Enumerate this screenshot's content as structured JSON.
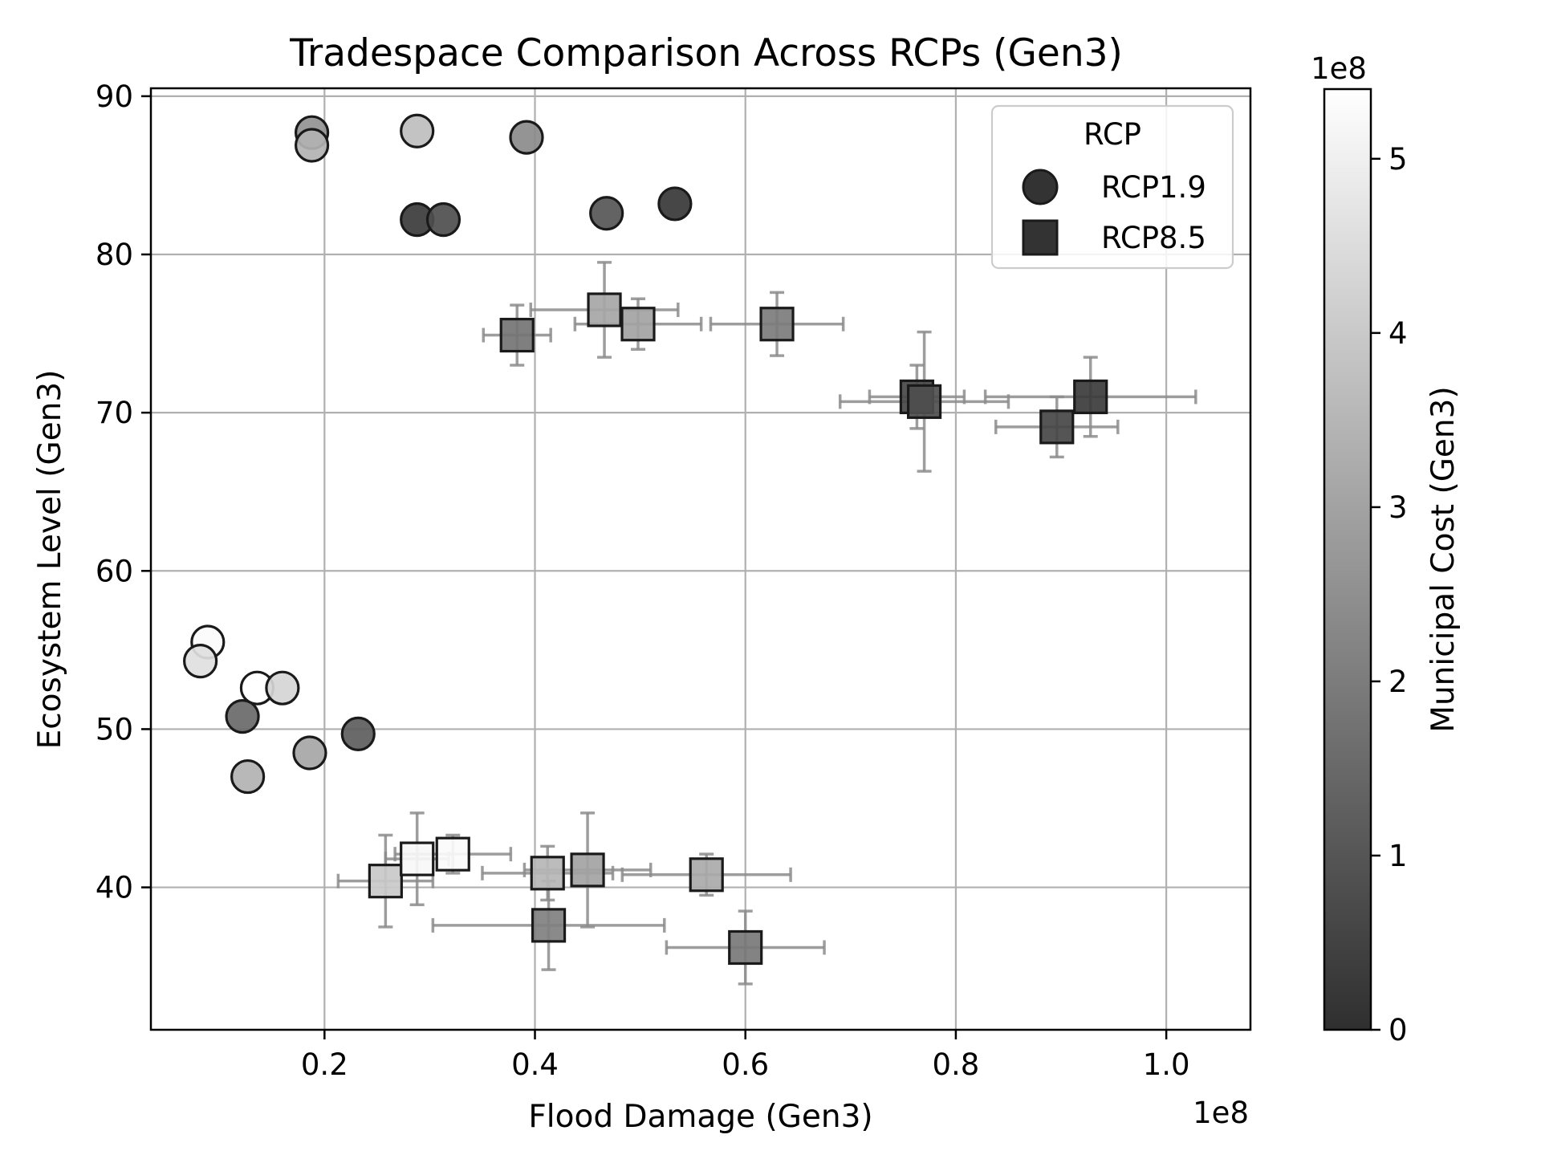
{
  "chart_data": {
    "type": "scatter",
    "title": "Tradespace Comparison Across RCPs (Gen3)",
    "xlabel": "Flood Damage (Gen3)",
    "ylabel": "Ecosystem Level (Gen3)",
    "x_multiplier_label": "1e8",
    "xlim": [
      0.035,
      1.08
    ],
    "ylim": [
      31,
      90.5
    ],
    "x_ticks": [
      0.2,
      0.4,
      0.6,
      0.8,
      1.0
    ],
    "x_tick_labels": [
      "0.2",
      "0.4",
      "0.6",
      "0.8",
      "1.0"
    ],
    "y_ticks": [
      40,
      50,
      60,
      70,
      80,
      90
    ],
    "y_tick_labels": [
      "40",
      "50",
      "60",
      "70",
      "80",
      "90"
    ],
    "grid": true,
    "legend": {
      "title": "RCP",
      "placement": "top-right",
      "entries": [
        {
          "label": "RCP1.9",
          "marker": "circle"
        },
        {
          "label": "RCP8.5",
          "marker": "square"
        }
      ]
    },
    "colorbar": {
      "label": "Municipal Cost (Gen3)",
      "multiplier_label": "1e8",
      "range": [
        0,
        5.4
      ],
      "ticks": [
        0,
        1,
        2,
        3,
        4,
        5
      ],
      "tick_labels": [
        "0",
        "1",
        "2",
        "3",
        "4",
        "5"
      ],
      "colormap": "gray"
    },
    "series": [
      {
        "name": "RCP1.9",
        "marker": "circle",
        "points": [
          {
            "x": 0.188,
            "y": 87.7,
            "cost": 2.6
          },
          {
            "x": 0.188,
            "y": 86.9,
            "cost": 3.4
          },
          {
            "x": 0.288,
            "y": 87.8,
            "cost": 3.7
          },
          {
            "x": 0.392,
            "y": 87.4,
            "cost": 2.4
          },
          {
            "x": 0.288,
            "y": 82.2,
            "cost": 0.3
          },
          {
            "x": 0.313,
            "y": 82.2,
            "cost": 0.8
          },
          {
            "x": 0.468,
            "y": 82.6,
            "cost": 1.0
          },
          {
            "x": 0.533,
            "y": 83.2,
            "cost": 0.2
          },
          {
            "x": 0.089,
            "y": 55.5,
            "cost": 5.3
          },
          {
            "x": 0.082,
            "y": 54.3,
            "cost": 4.6
          },
          {
            "x": 0.136,
            "y": 52.6,
            "cost": 5.4
          },
          {
            "x": 0.16,
            "y": 52.6,
            "cost": 4.3
          },
          {
            "x": 0.122,
            "y": 50.8,
            "cost": 1.5
          },
          {
            "x": 0.232,
            "y": 49.7,
            "cost": 1.2
          },
          {
            "x": 0.186,
            "y": 48.5,
            "cost": 3.1
          },
          {
            "x": 0.127,
            "y": 47.0,
            "cost": 3.4
          }
        ]
      },
      {
        "name": "RCP8.5",
        "marker": "square",
        "points": [
          {
            "x": 0.383,
            "y": 74.9,
            "xerr": 0.032,
            "yerr": 1.9,
            "cost": 1.8
          },
          {
            "x": 0.466,
            "y": 76.5,
            "xerr": 0.07,
            "yerr": 3.0,
            "cost": 3.1
          },
          {
            "x": 0.498,
            "y": 75.6,
            "xerr": 0.06,
            "yerr": 1.6,
            "cost": 3.0
          },
          {
            "x": 0.63,
            "y": 75.6,
            "xerr": 0.063,
            "yerr": 2.0,
            "cost": 2.0
          },
          {
            "x": 0.763,
            "y": 71.0,
            "xerr": 0.045,
            "yerr": 2.0,
            "cost": 0.6
          },
          {
            "x": 0.77,
            "y": 70.7,
            "xerr": 0.08,
            "yerr": 4.4,
            "cost": 0.8
          },
          {
            "x": 0.928,
            "y": 71.0,
            "xerr": 0.1,
            "yerr": 2.5,
            "cost": 0.3
          },
          {
            "x": 0.896,
            "y": 69.1,
            "xerr": 0.058,
            "yerr": 1.9,
            "cost": 0.6
          },
          {
            "x": 0.258,
            "y": 40.4,
            "xerr": 0.045,
            "yerr": 2.9,
            "cost": 4.0
          },
          {
            "x": 0.288,
            "y": 41.8,
            "xerr": 0.03,
            "yerr": 2.9,
            "cost": 5.2
          },
          {
            "x": 0.322,
            "y": 42.1,
            "xerr": 0.055,
            "yerr": 1.2,
            "cost": 5.3
          },
          {
            "x": 0.412,
            "y": 40.9,
            "xerr": 0.062,
            "yerr": 1.7,
            "cost": 3.5
          },
          {
            "x": 0.45,
            "y": 41.1,
            "xerr": 0.06,
            "yerr": 3.6,
            "cost": 3.0
          },
          {
            "x": 0.563,
            "y": 40.8,
            "xerr": 0.08,
            "yerr": 1.3,
            "cost": 3.2
          },
          {
            "x": 0.413,
            "y": 37.6,
            "xerr": 0.11,
            "yerr": 2.8,
            "cost": 2.1
          },
          {
            "x": 0.6,
            "y": 36.2,
            "xerr": 0.075,
            "yerr": 2.3,
            "cost": 1.9
          }
        ]
      }
    ]
  }
}
